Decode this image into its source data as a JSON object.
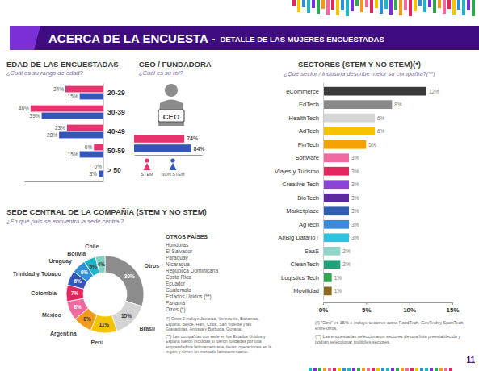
{
  "header": {
    "title": "ACERCA DE LA ENCUESTA -",
    "subtitle": "DETALLE DE LAS MUJERES ENCUESTADAS"
  },
  "chart_data": [
    {
      "type": "bar",
      "orientation": "horizontal",
      "title": "EDAD DE LAS ENCUESTADAS",
      "subtitle": "¿Cuál es su rango de edad?",
      "categories": [
        "20-29",
        "30-39",
        "40-49",
        "50-59",
        "> 50"
      ],
      "series": [
        {
          "color": "#e6336e",
          "values": [
            24,
            46,
            23,
            6,
            0
          ],
          "value_labels": [
            "24%",
            "46%",
            "23%",
            "6%",
            "0%"
          ]
        },
        {
          "color": "#3356b8",
          "values": [
            15,
            39,
            28,
            15,
            3
          ],
          "value_labels": [
            "15%",
            "39%",
            "28%",
            "15%",
            "3%"
          ]
        }
      ],
      "xlim": [
        50,
        0
      ],
      "tick_labels": "y",
      "data_labels": true,
      "grid": false
    },
    {
      "type": "bar",
      "orientation": "horizontal",
      "title": "CEO / FUNDADORA",
      "subtitle": "¿Cuál es su rol?",
      "annotations": [
        "CEO"
      ],
      "categories": [
        null
      ],
      "series": [
        {
          "name": "STEM",
          "color": "#e6336e",
          "values": [
            74
          ],
          "value_labels": [
            "74%"
          ]
        },
        {
          "name": "NON STEM",
          "color": "#3356b8",
          "values": [
            84
          ],
          "value_labels": [
            "84%"
          ]
        }
      ],
      "xlim": [
        0,
        100
      ],
      "tick_labels": false,
      "data_labels": true,
      "legend": "bottom",
      "grid": false
    },
    {
      "type": "bar",
      "orientation": "horizontal",
      "title": "SECTORES (STEM Y NO STEM)(*)",
      "subtitle": "¿Qué sector / industria describe mejor su compañía?(**)",
      "categories": [
        "eCommerce",
        "EdTech",
        "HealthTech",
        "AdTech",
        "FinTech",
        "Software",
        "Viajes y Turismo",
        "Creative Tech",
        "BioTech",
        "Marketplace",
        "AgTech",
        "AI/Big Data/IoT",
        "SaaS",
        "CleanTech",
        "Logistics Tech",
        "Movilidad"
      ],
      "values": [
        12,
        8,
        6,
        6,
        5,
        3,
        3,
        3,
        3,
        3,
        3,
        3,
        2,
        2,
        1,
        1
      ],
      "value_labels": [
        "12%",
        "8%",
        "6%",
        "6%",
        "5%",
        "3%",
        "3%",
        "3%",
        "3%",
        "3%",
        "3%",
        "3%",
        "2%",
        "2%",
        "1%",
        "1%"
      ],
      "colors": [
        "#3a3a3a",
        "#8a8a8a",
        "#d6d6d6",
        "#f5c400",
        "#f5a300",
        "#f06aa0",
        "#e3265e",
        "#8a45d6",
        "#5b2aa0",
        "#2f5fb3",
        "#3b8ad9",
        "#2ec4e0",
        "#8fd6c8",
        "#22a07a",
        "#2fa84f",
        "#8a6a1a"
      ],
      "xlim": [
        0,
        15
      ],
      "xticks": [
        {
          "value": 0,
          "label": "0%"
        },
        {
          "value": 5,
          "label": "5%"
        },
        {
          "value": 10,
          "label": "10%"
        },
        {
          "value": 15,
          "label": "15%"
        }
      ],
      "data_labels": true,
      "grid": false,
      "annotations": [
        "(*) \"Otro\" es 35% e incluye sectores como FoodTech, GovTech y SportTech, entre otros.",
        "(**) Las encuestadas seleccionaron sectores de una lista preestablecida y podían seleccionar múltiples sectores."
      ]
    },
    {
      "type": "pie",
      "title": "SEDE CENTRAL DE LA COMPAÑÍA (STEM Y NO STEM)",
      "subtitle": "¿En qué país se encuentra la sede central?",
      "categories": [
        "Otros",
        "Brasil",
        "Perú",
        "Argentina",
        "México",
        "Colombia",
        "Trinidad y Tobago",
        "Uruguay",
        "Bolivia",
        "Chile"
      ],
      "values": [
        30,
        15,
        11,
        8,
        8,
        7,
        6,
        6,
        5,
        4
      ],
      "value_labels": [
        "30%",
        "15%",
        "11%",
        "8%",
        "8%",
        "7%",
        "6%",
        "6%",
        "5%",
        "4%"
      ],
      "colors": [
        "#8c8c8c",
        "#d4d4d4",
        "#f5c400",
        "#f39a1e",
        "#f06aa0",
        "#e3265e",
        "#3356b8",
        "#2f8fd8",
        "#1fb5c9",
        "#7fd1c4"
      ],
      "data_labels": true
    }
  ],
  "otros_paises": {
    "title": "OTROS PAÍSES",
    "items": [
      "Honduras",
      "El Salvador",
      "Paraguay",
      "Nicaragua",
      "República Dominicana",
      "Costa Rica",
      "Ecuador",
      "Guatemala",
      "Estados Unidos (**)",
      "Panamá",
      "Otros (*)"
    ],
    "notes": [
      "(*) Otros 2 incluye Jamaica, Venezuela, Bahamas, España, Belice, Haití, Cuba, San Vicente y las Granadinas, Antigua y Barbuda, Guyana.",
      "(**) Las compañías con sede en los Estados Unidos y España fueron incluidas si fueron fundadas por una emprendedora latinoamericana, tienen operaciones en la región y sirven un mercado latinoamericano."
    ]
  },
  "page_number": 11
}
